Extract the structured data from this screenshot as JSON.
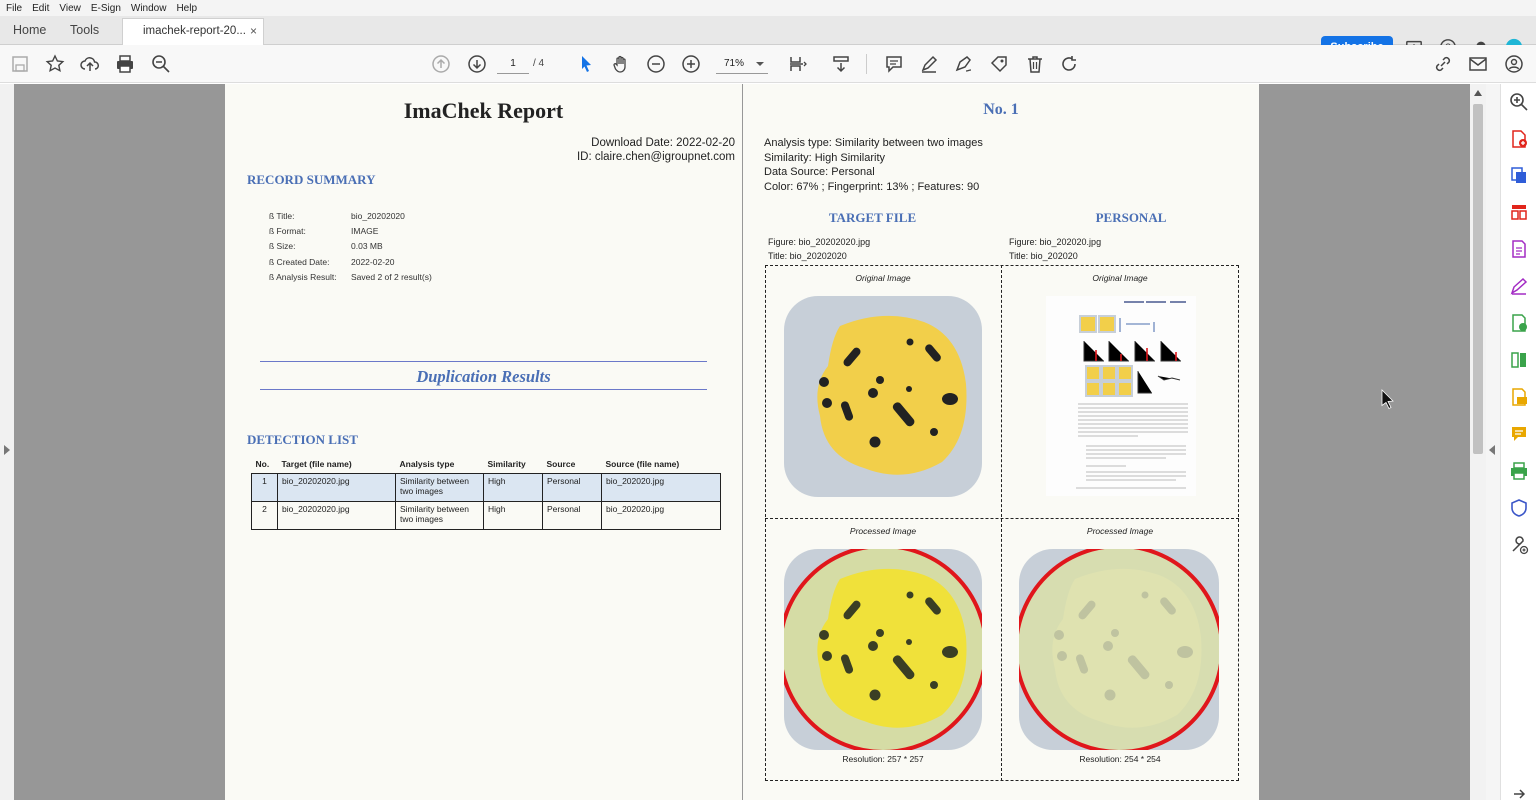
{
  "menu": [
    "File",
    "Edit",
    "View",
    "E-Sign",
    "Window",
    "Help"
  ],
  "tabs": {
    "home": "Home",
    "tools": "Tools",
    "document": "imachek-report-20...",
    "close": "×"
  },
  "subscribe": "Subscribe",
  "toolbar": {
    "page_current": "1",
    "page_total": "/ 4",
    "zoom": "71%"
  },
  "report": {
    "title": "ImaChek Report",
    "download_date": "Download Date: 2022-02-20",
    "user_id": "ID: claire.chen@igroupnet.com",
    "record_summary_heading": "RECORD SUMMARY",
    "record": [
      {
        "key": "ß Title:",
        "value": "bio_20202020"
      },
      {
        "key": "ß Format:",
        "value": "IMAGE"
      },
      {
        "key": "ß Size:",
        "value": "0.03 MB"
      },
      {
        "key": "ß Created Date:",
        "value": "2022-02-20"
      },
      {
        "key": "ß Analysis Result:",
        "value": "Saved 2 of 2 result(s)"
      }
    ],
    "duplication_heading": "Duplication Results",
    "detection_heading": "DETECTION LIST",
    "detection_columns": [
      "No.",
      "Target (file name)",
      "Analysis type",
      "Similarity",
      "Source",
      "Source (file name)"
    ],
    "detection_rows": [
      [
        "1",
        "bio_20202020.jpg",
        "Similarity between two images",
        "High",
        "Personal",
        "bio_202020.jpg"
      ],
      [
        "2",
        "bio_20202020.jpg",
        "Similarity between two images",
        "High",
        "Personal",
        "bio_202020.jpg"
      ]
    ]
  },
  "result": {
    "heading": "No. 1",
    "analysis_type": "Analysis type: Similarity between two images",
    "similarity": "Similarity: High Similarity",
    "data_source": "Data Source: Personal",
    "scores": "Color: 67% ; Fingerprint: 13% ; Features: 90",
    "target_heading": "TARGET FILE",
    "personal_heading": "PERSONAL",
    "target_figure": "Figure: bio_20202020.jpg",
    "target_title": "Title: bio_20202020",
    "personal_figure": "Figure: bio_202020.jpg",
    "personal_title": "Title: bio_202020",
    "original_caption": "Original Image",
    "processed_caption": "Processed Image",
    "target_resolution": "Resolution: 257 * 257",
    "personal_resolution": "Resolution: 254 * 254"
  },
  "colors": {
    "accent": "#4a6fb5",
    "subscribe": "#1473e6",
    "viewer_bg": "#979797",
    "highlight_row": "#dbe6f2",
    "blob": "#f2cf4a",
    "plate": "#c7cfd8",
    "ring": "#e0161b"
  }
}
